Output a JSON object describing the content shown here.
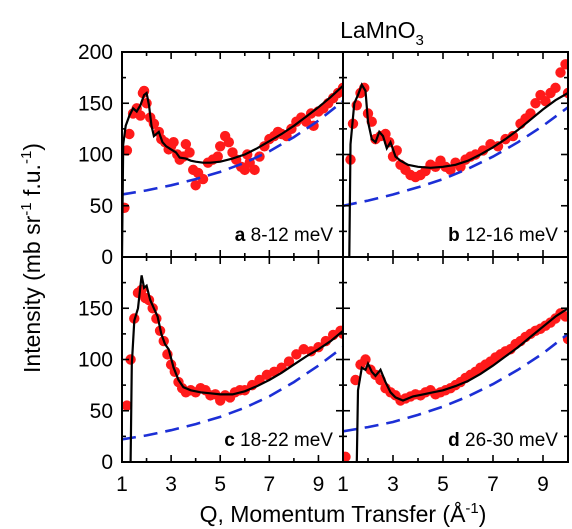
{
  "figure": {
    "title_main": "LaMnO",
    "title_sub": "3",
    "ylabel_parts": [
      "Intensity (mb sr",
      "-1",
      " f.u.",
      "-1",
      ")"
    ],
    "xlabel_parts": [
      "Q, Momentum Transfer (Å",
      "-1",
      ")"
    ],
    "colors": {
      "points": "#ff1a1a",
      "fit": "#000000",
      "background": "#1c2fd6"
    }
  },
  "chart_data": [
    {
      "type": "scatter",
      "panel": "a",
      "label_letter": "a",
      "label_text": " 8-12 meV",
      "xlim": [
        1,
        10
      ],
      "ylim": [
        0,
        200
      ],
      "xticks": [
        1,
        3,
        5,
        7,
        9
      ],
      "yticks": [
        0,
        50,
        100,
        150,
        200
      ],
      "points": [
        [
          1.1,
          48
        ],
        [
          1.2,
          104
        ],
        [
          1.3,
          120
        ],
        [
          1.45,
          140
        ],
        [
          1.6,
          145
        ],
        [
          1.75,
          138
        ],
        [
          1.85,
          160
        ],
        [
          1.9,
          162
        ],
        [
          2.0,
          150
        ],
        [
          2.15,
          136
        ],
        [
          2.3,
          130
        ],
        [
          2.5,
          122
        ],
        [
          2.6,
          115
        ],
        [
          2.75,
          112
        ],
        [
          2.9,
          105
        ],
        [
          3.0,
          108
        ],
        [
          3.1,
          112
        ],
        [
          3.25,
          100
        ],
        [
          3.35,
          95
        ],
        [
          3.5,
          98
        ],
        [
          3.6,
          110
        ],
        [
          3.75,
          102
        ],
        [
          3.9,
          85
        ],
        [
          4.0,
          70
        ],
        [
          4.1,
          82
        ],
        [
          4.3,
          76
        ],
        [
          4.5,
          92
        ],
        [
          4.7,
          95
        ],
        [
          4.9,
          98
        ],
        [
          5.0,
          108
        ],
        [
          5.2,
          118
        ],
        [
          5.35,
          112
        ],
        [
          5.5,
          102
        ],
        [
          5.65,
          95
        ],
        [
          5.85,
          88
        ],
        [
          6.0,
          85
        ],
        [
          6.1,
          100
        ],
        [
          6.2,
          92
        ],
        [
          6.4,
          85
        ],
        [
          6.6,
          98
        ],
        [
          6.8,
          108
        ],
        [
          7.0,
          115
        ],
        [
          7.2,
          118
        ],
        [
          7.35,
          122
        ],
        [
          7.5,
          120
        ],
        [
          7.7,
          118
        ],
        [
          7.9,
          125
        ],
        [
          8.1,
          132
        ],
        [
          8.3,
          136
        ],
        [
          8.5,
          132
        ],
        [
          8.7,
          140
        ],
        [
          8.8,
          128
        ],
        [
          9.0,
          142
        ],
        [
          9.2,
          145
        ],
        [
          9.4,
          150
        ],
        [
          9.6,
          155
        ],
        [
          9.8,
          160
        ],
        [
          10.0,
          165
        ]
      ],
      "fit": [
        [
          1.0,
          0
        ],
        [
          1.05,
          110
        ],
        [
          1.15,
          128
        ],
        [
          1.3,
          138
        ],
        [
          1.45,
          145
        ],
        [
          1.6,
          142
        ],
        [
          1.75,
          148
        ],
        [
          1.9,
          158
        ],
        [
          2.0,
          160
        ],
        [
          2.1,
          148
        ],
        [
          2.2,
          128
        ],
        [
          2.3,
          118
        ],
        [
          2.5,
          122
        ],
        [
          2.65,
          112
        ],
        [
          2.8,
          108
        ],
        [
          3.0,
          105
        ],
        [
          3.2,
          102
        ],
        [
          3.35,
          97
        ],
        [
          3.6,
          96
        ],
        [
          3.8,
          94
        ],
        [
          4.0,
          93
        ],
        [
          4.3,
          92
        ],
        [
          4.6,
          92
        ],
        [
          5.0,
          93
        ],
        [
          5.5,
          96
        ],
        [
          6.0,
          100
        ],
        [
          6.5,
          106
        ],
        [
          7.0,
          113
        ],
        [
          7.5,
          120
        ],
        [
          8.0,
          128
        ],
        [
          8.5,
          137
        ],
        [
          9.0,
          146
        ],
        [
          9.5,
          156
        ],
        [
          10.0,
          167
        ]
      ],
      "background": [
        [
          1.0,
          61
        ],
        [
          2.0,
          65
        ],
        [
          3.0,
          70
        ],
        [
          4.0,
          76
        ],
        [
          5.0,
          83
        ],
        [
          6.0,
          92
        ],
        [
          7.0,
          103
        ],
        [
          8.0,
          117
        ],
        [
          9.0,
          133
        ],
        [
          10.0,
          152
        ]
      ]
    },
    {
      "type": "scatter",
      "panel": "b",
      "label_letter": "b",
      "label_text": " 12-16 meV",
      "xlim": [
        1,
        10
      ],
      "ylim": [
        0,
        200
      ],
      "xticks": [
        1,
        3,
        5,
        7,
        9
      ],
      "yticks": [
        0,
        50,
        100,
        150,
        200
      ],
      "points": [
        [
          1.3,
          95
        ],
        [
          1.4,
          130
        ],
        [
          1.55,
          148
        ],
        [
          1.7,
          160
        ],
        [
          1.85,
          165
        ],
        [
          2.0,
          140
        ],
        [
          2.15,
          132
        ],
        [
          2.3,
          115
        ],
        [
          2.5,
          118
        ],
        [
          2.7,
          120
        ],
        [
          2.85,
          112
        ],
        [
          3.0,
          98
        ],
        [
          3.15,
          104
        ],
        [
          3.3,
          90
        ],
        [
          3.5,
          85
        ],
        [
          3.7,
          80
        ],
        [
          3.9,
          78
        ],
        [
          4.1,
          80
        ],
        [
          4.3,
          84
        ],
        [
          4.5,
          90
        ],
        [
          4.7,
          88
        ],
        [
          4.9,
          94
        ],
        [
          5.1,
          88
        ],
        [
          5.3,
          85
        ],
        [
          5.5,
          92
        ],
        [
          5.7,
          88
        ],
        [
          5.9,
          95
        ],
        [
          6.1,
          98
        ],
        [
          6.3,
          100
        ],
        [
          6.6,
          104
        ],
        [
          6.9,
          110
        ],
        [
          7.2,
          108
        ],
        [
          7.5,
          115
        ],
        [
          7.8,
          118
        ],
        [
          8.1,
          130
        ],
        [
          8.3,
          135
        ],
        [
          8.5,
          140
        ],
        [
          8.7,
          150
        ],
        [
          8.9,
          158
        ],
        [
          9.1,
          152
        ],
        [
          9.3,
          160
        ],
        [
          9.5,
          165
        ],
        [
          9.7,
          180
        ],
        [
          9.9,
          188
        ],
        [
          10.0,
          160
        ]
      ],
      "fit": [
        [
          1.25,
          0
        ],
        [
          1.3,
          110
        ],
        [
          1.45,
          150
        ],
        [
          1.6,
          158
        ],
        [
          1.75,
          168
        ],
        [
          1.9,
          162
        ],
        [
          2.0,
          132
        ],
        [
          2.15,
          115
        ],
        [
          2.3,
          112
        ],
        [
          2.45,
          122
        ],
        [
          2.6,
          118
        ],
        [
          2.75,
          106
        ],
        [
          2.9,
          112
        ],
        [
          3.1,
          98
        ],
        [
          3.3,
          94
        ],
        [
          3.6,
          90
        ],
        [
          4.0,
          88
        ],
        [
          4.5,
          87
        ],
        [
          5.0,
          88
        ],
        [
          5.5,
          90
        ],
        [
          6.0,
          94
        ],
        [
          6.5,
          100
        ],
        [
          7.0,
          107
        ],
        [
          7.5,
          115
        ],
        [
          8.0,
          124
        ],
        [
          8.5,
          134
        ],
        [
          9.0,
          144
        ],
        [
          9.5,
          153
        ],
        [
          10.0,
          160
        ]
      ],
      "background": [
        [
          1.0,
          50
        ],
        [
          2.0,
          55
        ],
        [
          3.0,
          61
        ],
        [
          4.0,
          68
        ],
        [
          5.0,
          76
        ],
        [
          6.0,
          86
        ],
        [
          7.0,
          98
        ],
        [
          8.0,
          112
        ],
        [
          9.0,
          128
        ],
        [
          10.0,
          146
        ]
      ]
    },
    {
      "type": "scatter",
      "panel": "c",
      "label_letter": "c",
      "label_text": " 18-22 meV",
      "xlim": [
        1,
        10
      ],
      "ylim": [
        0,
        200
      ],
      "xticks": [
        1,
        3,
        5,
        7,
        9
      ],
      "yticks": [
        0,
        50,
        100,
        150
      ],
      "points": [
        [
          1.2,
          55
        ],
        [
          1.35,
          100
        ],
        [
          1.5,
          140
        ],
        [
          1.65,
          165
        ],
        [
          1.8,
          168
        ],
        [
          1.95,
          160
        ],
        [
          2.1,
          158
        ],
        [
          2.25,
          150
        ],
        [
          2.4,
          140
        ],
        [
          2.55,
          128
        ],
        [
          2.7,
          118
        ],
        [
          2.85,
          105
        ],
        [
          3.0,
          95
        ],
        [
          3.15,
          88
        ],
        [
          3.3,
          78
        ],
        [
          3.45,
          72
        ],
        [
          3.6,
          68
        ],
        [
          3.8,
          70
        ],
        [
          4.0,
          68
        ],
        [
          4.2,
          72
        ],
        [
          4.4,
          70
        ],
        [
          4.6,
          65
        ],
        [
          4.8,
          66
        ],
        [
          5.0,
          60
        ],
        [
          5.2,
          65
        ],
        [
          5.4,
          63
        ],
        [
          5.6,
          68
        ],
        [
          5.8,
          70
        ],
        [
          6.0,
          70
        ],
        [
          6.3,
          75
        ],
        [
          6.6,
          80
        ],
        [
          6.9,
          85
        ],
        [
          7.2,
          88
        ],
        [
          7.5,
          92
        ],
        [
          7.8,
          98
        ],
        [
          8.1,
          105
        ],
        [
          8.4,
          110
        ],
        [
          8.7,
          108
        ],
        [
          9.0,
          112
        ],
        [
          9.3,
          118
        ],
        [
          9.6,
          124
        ],
        [
          9.9,
          128
        ],
        [
          10.0,
          125
        ]
      ],
      "fit": [
        [
          1.35,
          0
        ],
        [
          1.4,
          95
        ],
        [
          1.5,
          138
        ],
        [
          1.65,
          150
        ],
        [
          1.8,
          182
        ],
        [
          1.9,
          170
        ],
        [
          2.0,
          172
        ],
        [
          2.15,
          158
        ],
        [
          2.3,
          150
        ],
        [
          2.45,
          142
        ],
        [
          2.6,
          125
        ],
        [
          2.75,
          115
        ],
        [
          2.9,
          110
        ],
        [
          3.1,
          92
        ],
        [
          3.3,
          80
        ],
        [
          3.5,
          73
        ],
        [
          3.8,
          70
        ],
        [
          4.2,
          68
        ],
        [
          4.6,
          67
        ],
        [
          5.0,
          66
        ],
        [
          5.5,
          66
        ],
        [
          6.0,
          69
        ],
        [
          6.5,
          74
        ],
        [
          7.0,
          80
        ],
        [
          7.5,
          87
        ],
        [
          8.0,
          95
        ],
        [
          8.5,
          103
        ],
        [
          9.0,
          110
        ],
        [
          9.5,
          118
        ],
        [
          10.0,
          128
        ]
      ],
      "background": [
        [
          1.0,
          22
        ],
        [
          2.0,
          26
        ],
        [
          3.0,
          31
        ],
        [
          4.0,
          37
        ],
        [
          5.0,
          44
        ],
        [
          6.0,
          53
        ],
        [
          7.0,
          64
        ],
        [
          8.0,
          78
        ],
        [
          9.0,
          94
        ],
        [
          10.0,
          112
        ]
      ]
    },
    {
      "type": "scatter",
      "panel": "d",
      "label_letter": "d",
      "label_text": " 26-30 meV",
      "xlim": [
        1,
        10
      ],
      "ylim": [
        0,
        200
      ],
      "xticks": [
        1,
        3,
        5,
        7,
        9
      ],
      "yticks": [
        0,
        50,
        100,
        150
      ],
      "points": [
        [
          1.1,
          5
        ],
        [
          1.5,
          80
        ],
        [
          1.7,
          95
        ],
        [
          1.9,
          100
        ],
        [
          2.1,
          90
        ],
        [
          2.3,
          85
        ],
        [
          2.5,
          80
        ],
        [
          2.7,
          72
        ],
        [
          2.9,
          68
        ],
        [
          3.1,
          65
        ],
        [
          3.3,
          60
        ],
        [
          3.5,
          62
        ],
        [
          3.7,
          64
        ],
        [
          3.9,
          66
        ],
        [
          4.1,
          65
        ],
        [
          4.3,
          68
        ],
        [
          4.5,
          70
        ],
        [
          4.7,
          66
        ],
        [
          4.9,
          68
        ],
        [
          5.1,
          70
        ],
        [
          5.3,
          72
        ],
        [
          5.5,
          75
        ],
        [
          5.7,
          78
        ],
        [
          5.9,
          82
        ],
        [
          6.1,
          85
        ],
        [
          6.3,
          88
        ],
        [
          6.5,
          92
        ],
        [
          6.7,
          95
        ],
        [
          6.9,
          98
        ],
        [
          7.1,
          102
        ],
        [
          7.3,
          105
        ],
        [
          7.5,
          108
        ],
        [
          7.7,
          110
        ],
        [
          7.9,
          115
        ],
        [
          8.1,
          118
        ],
        [
          8.3,
          122
        ],
        [
          8.5,
          125
        ],
        [
          8.7,
          128
        ],
        [
          8.9,
          130
        ],
        [
          9.1,
          133
        ],
        [
          9.3,
          136
        ],
        [
          9.5,
          140
        ],
        [
          9.7,
          145
        ],
        [
          9.9,
          142
        ],
        [
          10.0,
          120
        ]
      ],
      "fit": [
        [
          1.55,
          0
        ],
        [
          1.6,
          70
        ],
        [
          1.75,
          92
        ],
        [
          1.9,
          90
        ],
        [
          2.0,
          96
        ],
        [
          2.15,
          88
        ],
        [
          2.3,
          84
        ],
        [
          2.5,
          90
        ],
        [
          2.7,
          78
        ],
        [
          2.9,
          68
        ],
        [
          3.1,
          63
        ],
        [
          3.4,
          60
        ],
        [
          3.8,
          64
        ],
        [
          4.2,
          66
        ],
        [
          4.6,
          68
        ],
        [
          5.0,
          70
        ],
        [
          5.5,
          74
        ],
        [
          6.0,
          79
        ],
        [
          6.5,
          86
        ],
        [
          7.0,
          94
        ],
        [
          7.5,
          103
        ],
        [
          8.0,
          112
        ],
        [
          8.5,
          122
        ],
        [
          9.0,
          132
        ],
        [
          9.5,
          142
        ],
        [
          10.0,
          150
        ]
      ],
      "background": [
        [
          1.0,
          30
        ],
        [
          2.0,
          34
        ],
        [
          3.0,
          39
        ],
        [
          4.0,
          46
        ],
        [
          5.0,
          54
        ],
        [
          6.0,
          64
        ],
        [
          7.0,
          76
        ],
        [
          8.0,
          90
        ],
        [
          9.0,
          106
        ],
        [
          10.0,
          125
        ]
      ]
    }
  ]
}
